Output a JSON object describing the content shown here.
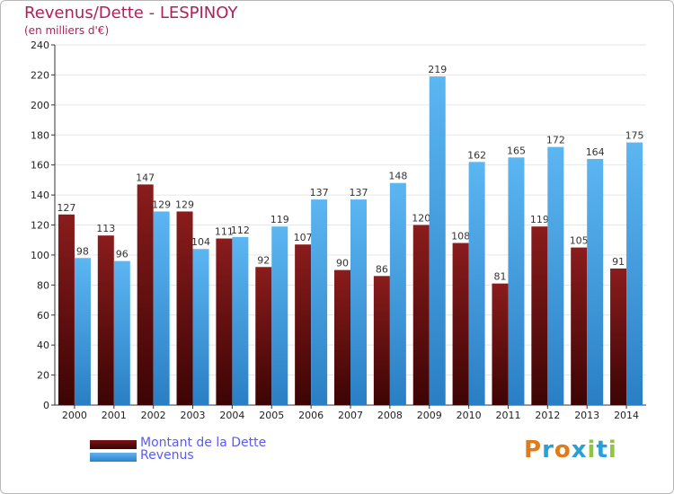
{
  "header": {
    "title": "Revenus/Dette - LESPINOY",
    "subtitle": "(en milliers d'€)"
  },
  "colors": {
    "dette": "#7a1414",
    "revenus": "#4aa3e6",
    "axis_text": "#222222",
    "title": "#b0205a",
    "legend_text": "#5b5bf0"
  },
  "chart_data": {
    "type": "bar",
    "title": "Revenus/Dette - LESPINOY",
    "subtitle": "(en milliers d'€)",
    "categories": [
      "2000",
      "2001",
      "2002",
      "2003",
      "2004",
      "2005",
      "2006",
      "2007",
      "2008",
      "2009",
      "2010",
      "2011",
      "2012",
      "2013",
      "2014"
    ],
    "series": [
      {
        "name": "Montant de la Dette",
        "values": [
          127,
          113,
          147,
          129,
          111,
          92,
          107,
          90,
          86,
          120,
          108,
          81,
          119,
          105,
          91
        ]
      },
      {
        "name": "Revenus",
        "values": [
          98,
          96,
          129,
          104,
          112,
          119,
          137,
          137,
          148,
          219,
          162,
          165,
          172,
          164,
          175
        ]
      }
    ],
    "ylim": [
      0,
      240
    ],
    "yticks": [
      0,
      20,
      40,
      60,
      80,
      100,
      120,
      140,
      160,
      180,
      200,
      220,
      240
    ],
    "grid": true,
    "legend": "bottom-left"
  },
  "legend": {
    "dette_label": "Montant de la Dette",
    "revenus_label": "Revenus"
  },
  "logo": {
    "text": "Proxiti",
    "letters": [
      "P",
      "r",
      "o",
      "x",
      "i",
      "t",
      "i"
    ],
    "letter_colors": [
      "#e07a1a",
      "#2a9fd6",
      "#e07a1a",
      "#2a9fd6",
      "#8fc63f",
      "#2a9fd6",
      "#8fc63f"
    ]
  }
}
